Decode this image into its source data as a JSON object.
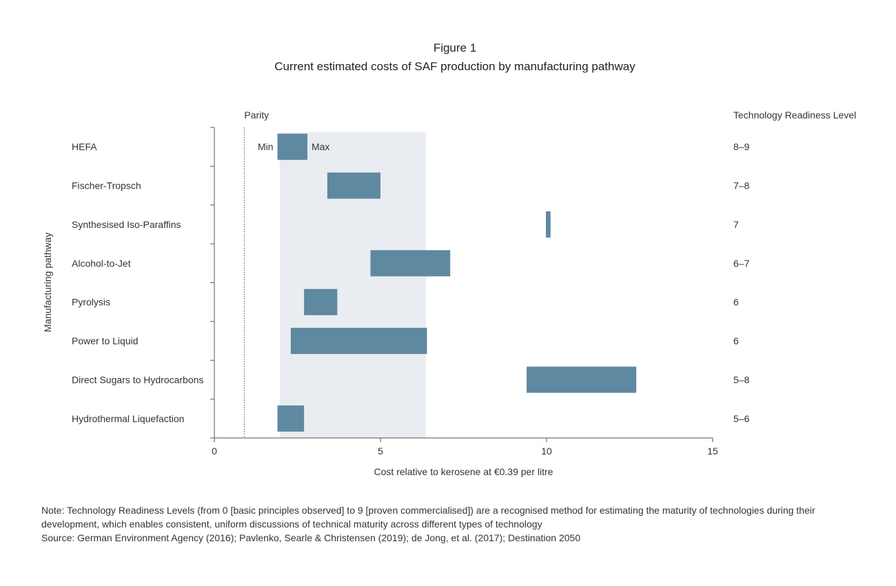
{
  "figure_label": "Figure 1",
  "title": "Current estimated costs of SAF production by manufacturing pathway",
  "note": "Note: Technology Readiness Levels (from 0 [basic principles observed] to 9 [proven commercialised]) are a recognised method for estimating the maturity of technologies during their development, which enables consistent, uniform discussions of technical maturity across different types of technology",
  "source": "Source: German Environment Agency (2016); Pavlenko, Searle & Christensen (2019); de Jong, et al. (2017); Destination 2050",
  "chart_data": {
    "type": "bar",
    "orientation": "horizontal-range",
    "xlabel": "Cost relative to kerosene at €0.39 per litre",
    "ylabel": "Manufacturing pathway",
    "xlim": [
      0,
      15
    ],
    "xticks": [
      0,
      5,
      10,
      15
    ],
    "grid": false,
    "bar_color": "#5f88a1",
    "band_color": "#e9ecf1",
    "parity": {
      "label": "Parity",
      "value": 0.9
    },
    "shaded_band": [
      1.97,
      6.37
    ],
    "min_label": "Min",
    "max_label": "Max",
    "trl_header": "Technology Readiness Level",
    "categories": [
      "HEFA",
      "Fischer-Tropsch",
      "Synthesised Iso-Paraffins",
      "Alcohol-to-Jet",
      "Pyrolysis",
      "Power to Liquid",
      "Direct Sugars to Hydrocarbons",
      "Hydrothermal Liquefaction"
    ],
    "min": [
      1.9,
      3.4,
      9.98,
      4.7,
      2.7,
      2.3,
      9.4,
      1.9
    ],
    "max": [
      2.8,
      5.0,
      10.12,
      7.1,
      3.7,
      6.4,
      12.7,
      2.7
    ],
    "trl": [
      "8–9",
      "7–8",
      "7",
      "6–7",
      "6",
      "6",
      "5–8",
      "5–6"
    ]
  }
}
